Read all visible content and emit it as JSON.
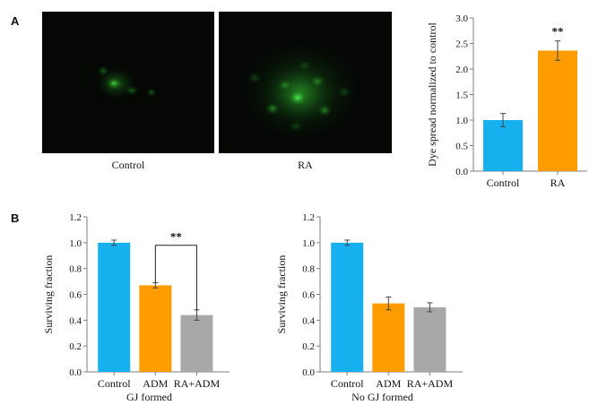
{
  "figure": {
    "panel_a_letter": "A",
    "panel_b_letter": "B",
    "micrographs": [
      {
        "label": "Control"
      },
      {
        "label": "RA"
      }
    ]
  },
  "colors": {
    "blue": "#17b0ee",
    "orange": "#ff9c00",
    "gray": "#a8a8a8",
    "axis": "#7f7f7f"
  },
  "chart_data": [
    {
      "type": "bar",
      "panel": "A",
      "categories": [
        "Control",
        "RA"
      ],
      "values": [
        1.0,
        2.36
      ],
      "errors": [
        0.13,
        0.19
      ],
      "colors": [
        "#17b0ee",
        "#ff9c00"
      ],
      "ylabel": "Dye spread normalized to control",
      "xlabel": "",
      "ylim": [
        0,
        3.0
      ],
      "yticks": [
        "0.0",
        "0.5",
        "1.0",
        "1.5",
        "2.0",
        "2.5",
        "3.0"
      ],
      "annotations": [
        {
          "text": "**",
          "category": "RA"
        }
      ]
    },
    {
      "type": "bar",
      "panel": "B-left",
      "categories": [
        "Control",
        "ADM",
        "RA+ADM"
      ],
      "values": [
        1.0,
        0.67,
        0.44
      ],
      "errors": [
        0.02,
        0.02,
        0.04
      ],
      "colors": [
        "#17b0ee",
        "#ff9c00",
        "#a8a8a8"
      ],
      "ylabel": "Surviving fraction",
      "xlabel": "GJ formed",
      "ylim": [
        0,
        1.2
      ],
      "yticks": [
        "0.0",
        "0.2",
        "0.4",
        "0.6",
        "0.8",
        "1.0",
        "1.2"
      ],
      "annotations": [
        {
          "text": "**",
          "bracket": [
            "ADM",
            "RA+ADM"
          ]
        }
      ]
    },
    {
      "type": "bar",
      "panel": "B-right",
      "categories": [
        "Control",
        "ADM",
        "RA+ADM"
      ],
      "values": [
        1.0,
        0.53,
        0.5
      ],
      "errors": [
        0.02,
        0.05,
        0.035
      ],
      "colors": [
        "#17b0ee",
        "#ff9c00",
        "#a8a8a8"
      ],
      "ylabel": "Surviving fraction",
      "xlabel": "No GJ formed",
      "ylim": [
        0,
        1.2
      ],
      "yticks": [
        "0.0",
        "0.2",
        "0.4",
        "0.6",
        "0.8",
        "1.0",
        "1.2"
      ],
      "annotations": []
    }
  ]
}
